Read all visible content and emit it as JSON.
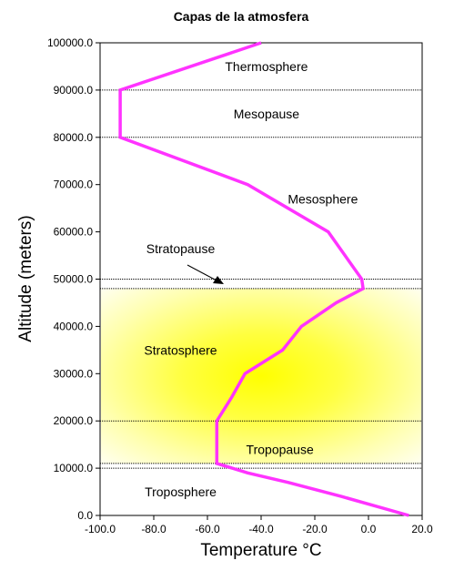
{
  "chart_data": {
    "type": "line",
    "title": "Capas de la atmosfera",
    "xlabel": "Temperature °C",
    "ylabel": "Altitude (meters)",
    "xlim": [
      -100,
      20
    ],
    "ylim": [
      0,
      100000
    ],
    "x_ticks": [
      "-100.0",
      "-80.0",
      "-60.0",
      "-40.0",
      "-20.0",
      "0.0",
      "20.0"
    ],
    "y_ticks": [
      "0.0",
      "10000.0",
      "20000.0",
      "30000.0",
      "40000.0",
      "50000.0",
      "60000.0",
      "70000.0",
      "80000.0",
      "90000.0",
      "100000.0"
    ],
    "grid": false,
    "series": [
      {
        "color": "#ff33ff",
        "points": [
          {
            "x": 15,
            "y": 0
          },
          {
            "x": -10,
            "y": 4000
          },
          {
            "x": -30,
            "y": 7000
          },
          {
            "x": -45,
            "y": 9000
          },
          {
            "x": -56.5,
            "y": 11000
          },
          {
            "x": -56.5,
            "y": 20000
          },
          {
            "x": -51,
            "y": 25000
          },
          {
            "x": -46,
            "y": 30000
          },
          {
            "x": -32,
            "y": 35000
          },
          {
            "x": -25,
            "y": 40000
          },
          {
            "x": -12,
            "y": 45000
          },
          {
            "x": -2,
            "y": 48000
          },
          {
            "x": -2.5,
            "y": 50000
          },
          {
            "x": -15,
            "y": 60000
          },
          {
            "x": -45,
            "y": 70000
          },
          {
            "x": -92.5,
            "y": 80000
          },
          {
            "x": -92.5,
            "y": 90000
          },
          {
            "x": -40,
            "y": 100000
          }
        ]
      }
    ],
    "boundaries": [
      10000,
      11000,
      20000,
      48000,
      50000,
      80000,
      90000
    ],
    "shaded_band": {
      "from": 11000,
      "to": 48000,
      "color": "#ffff00"
    },
    "layer_labels": [
      {
        "text": "Thermosphere",
        "x": -38,
        "y": 95000
      },
      {
        "text": "Mesopause",
        "x": -38,
        "y": 85000
      },
      {
        "text": "Mesosphere",
        "x": -17,
        "y": 67000
      },
      {
        "text": "Stratopause",
        "x": -70,
        "y": 56500
      },
      {
        "text": "Stratosphere",
        "x": -70,
        "y": 35000
      },
      {
        "text": "Tropopause",
        "x": -33,
        "y": 14000
      },
      {
        "text": "Troposphere",
        "x": -70,
        "y": 5000
      }
    ]
  }
}
